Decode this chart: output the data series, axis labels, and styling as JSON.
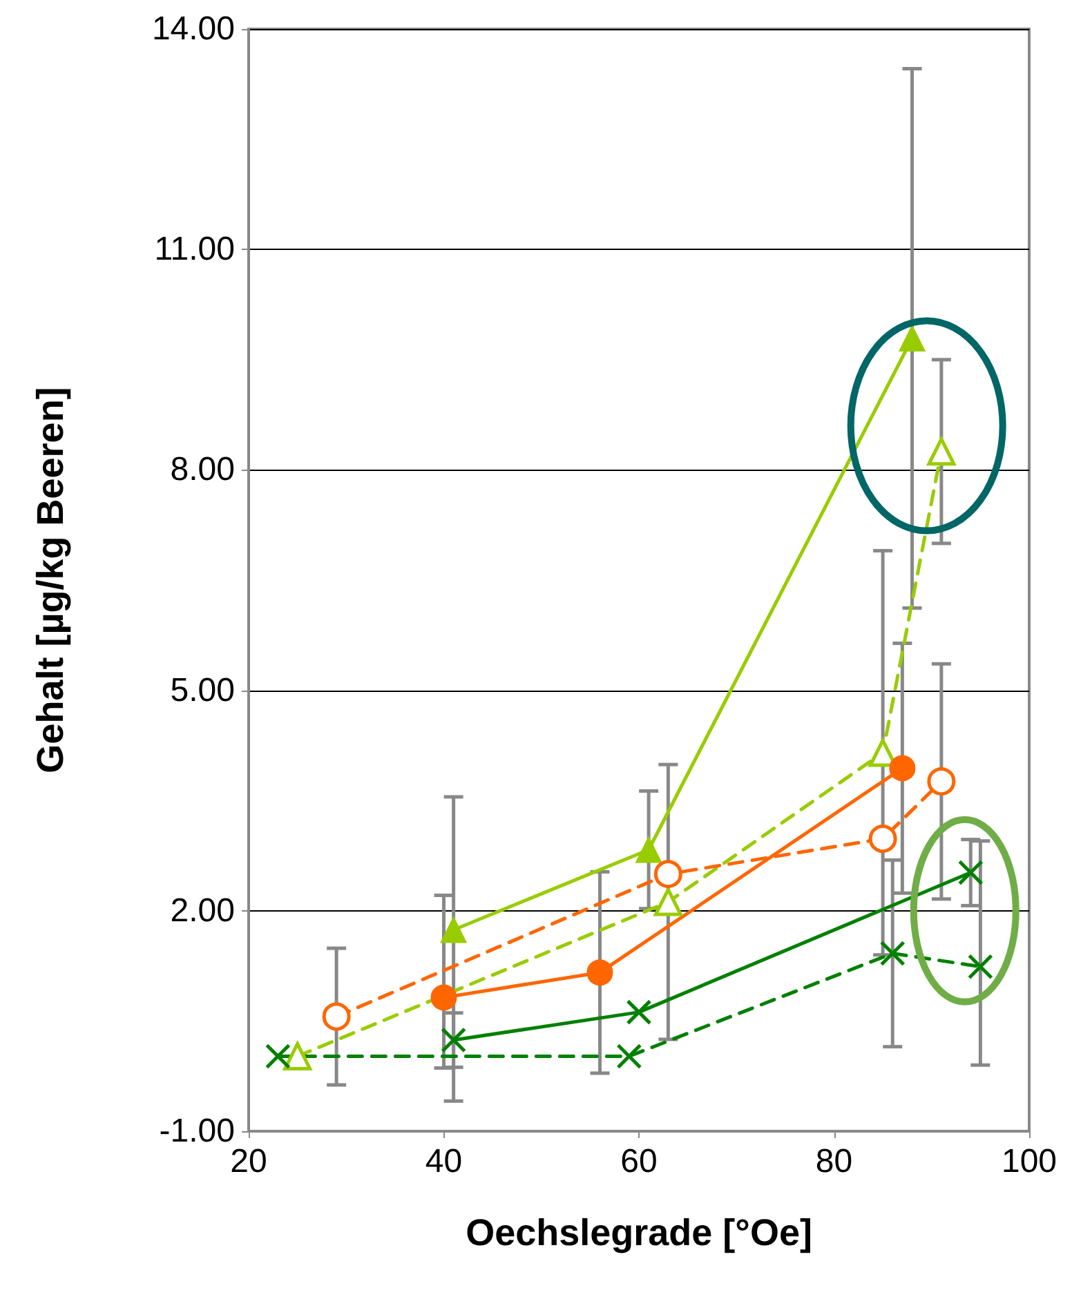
{
  "chart_data": {
    "type": "line",
    "xlabel": "Oechslegrade [°Oe]",
    "ylabel": "Gehalt [µg/kg Beeren]",
    "xlim": [
      20,
      100
    ],
    "xticks": [
      20,
      40,
      60,
      80,
      100
    ],
    "ylim": [
      -1,
      14
    ],
    "yticks": [
      {
        "value": -1,
        "label": "-1.00"
      },
      {
        "value": 2,
        "label": "2.00"
      },
      {
        "value": 5,
        "label": "5.00"
      },
      {
        "value": 8,
        "label": "8.00"
      },
      {
        "value": 11,
        "label": "11.00"
      },
      {
        "value": 14,
        "label": "14.00"
      }
    ],
    "grid": "y",
    "series": [
      {
        "color": "#99cc00",
        "marker": "triangle",
        "line_style": "solid",
        "x": [
          41,
          61,
          88
        ],
        "values": [
          1.74,
          2.83,
          9.79
        ],
        "errors": [
          [
            -0.59,
            3.55
          ],
          0.8,
          3.67
        ]
      },
      {
        "color": "#99cc00",
        "marker": "triangle",
        "line_style": "dashed",
        "x": [
          25,
          63,
          85,
          91
        ],
        "values": [
          0.02,
          2.12,
          4.15,
          8.25
        ],
        "errors": [
          null,
          1.87,
          2.75,
          1.25
        ]
      },
      {
        "color": "#ff6600",
        "marker": "circle",
        "line_style": "dashed",
        "x": [
          29,
          63,
          85,
          91
        ],
        "values": [
          0.56,
          2.5,
          2.98,
          3.76
        ],
        "errors": [
          0.93,
          null,
          null,
          1.6
        ]
      },
      {
        "color": "#ff6600",
        "marker": "circle",
        "line_style": "solid",
        "x": [
          40,
          56,
          87
        ],
        "values": [
          0.82,
          1.16,
          3.94
        ],
        "errors": [
          [
            -0.14,
            2.21
          ],
          1.37,
          1.7
        ]
      },
      {
        "color": "#008000",
        "marker": "cross",
        "line_style": "solid",
        "x": [
          41,
          60,
          94
        ],
        "values": [
          0.24,
          0.62,
          2.52
        ],
        "errors": [
          0.37,
          null,
          0.45
        ]
      },
      {
        "color": "#008000",
        "marker": "cross",
        "line_style": "dashed",
        "x": [
          23,
          59,
          86,
          95
        ],
        "values": [
          0.02,
          0.02,
          1.42,
          1.24
        ],
        "errors": [
          null,
          null,
          1.27,
          [
            -0.1,
            2.95
          ]
        ]
      }
    ]
  }
}
